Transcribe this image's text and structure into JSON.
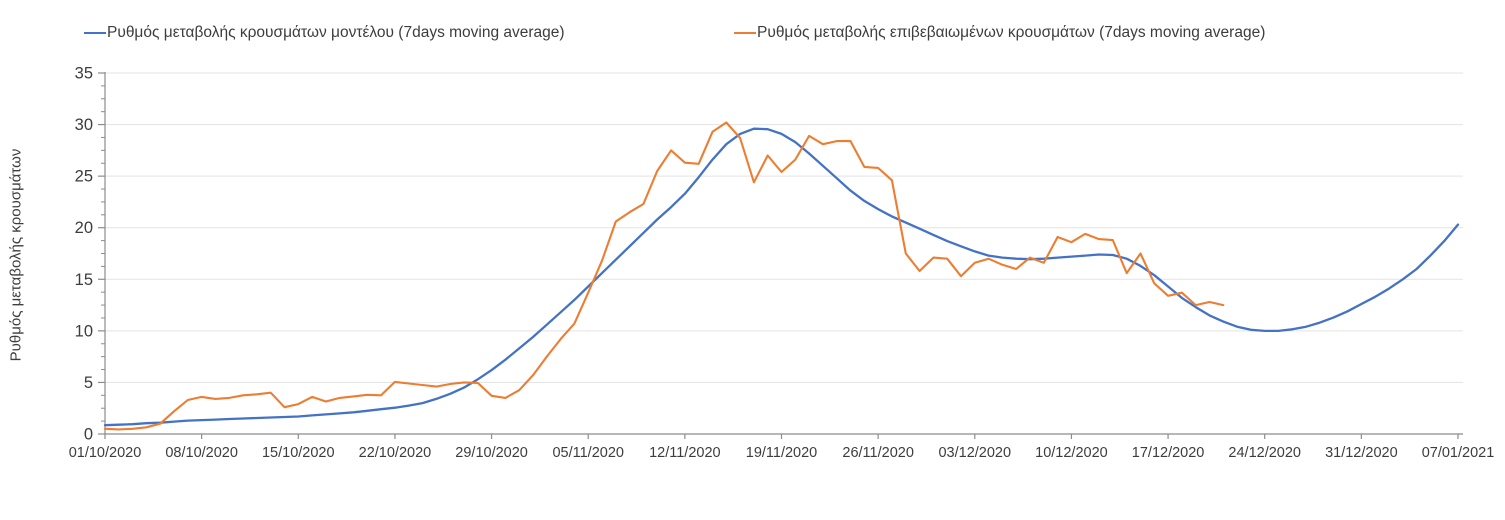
{
  "legend": {
    "items": [
      {
        "label": "Ρυθμός μεταβολής κρουσμάτων μοντέλου (7days moving average)",
        "color": "#4472C4"
      },
      {
        "label": "Ρυθμός μεταβολής επιβεβαιωμένων κρουσμάτων (7days moving average)",
        "color": "#ED7D31"
      }
    ]
  },
  "chart_data": {
    "type": "line",
    "title": "",
    "xlabel": "",
    "ylabel": "Ρυθμός μεταβολής κρουσμάτων",
    "ylim": [
      0,
      35
    ],
    "y_major_ticks": [
      0,
      5,
      10,
      15,
      20,
      25,
      30,
      35
    ],
    "y_minor_step": 1.25,
    "x_tick_labels": [
      "01/10/2020",
      "08/10/2020",
      "15/10/2020",
      "22/10/2020",
      "29/10/2020",
      "05/11/2020",
      "12/11/2020",
      "19/11/2020",
      "26/11/2020",
      "03/12/2020",
      "10/12/2020",
      "17/12/2020",
      "24/12/2020",
      "31/12/2020",
      "07/01/2021"
    ],
    "x_tick_every_days": 7,
    "grid": "horizontal-major-only",
    "legend_position": "top",
    "background_color": "#ffffff",
    "axis_color": "#8c8c8c",
    "grid_color": "#e3e3e3",
    "tick_label_color": "#3d3d3d",
    "series": [
      {
        "name": "Ρυθμός μεταβολής κρουσμάτων μοντέλου (7days moving average)",
        "color": "#4472C4",
        "start_date": "01/10/2020",
        "end_date": "07/01/2021",
        "values": [
          0.85,
          0.9,
          0.95,
          1.05,
          1.1,
          1.2,
          1.3,
          1.35,
          1.4,
          1.45,
          1.5,
          1.55,
          1.6,
          1.65,
          1.7,
          1.8,
          1.9,
          2.0,
          2.1,
          2.25,
          2.4,
          2.55,
          2.75,
          3.0,
          3.4,
          3.9,
          4.5,
          5.3,
          6.2,
          7.2,
          8.3,
          9.4,
          10.6,
          11.8,
          13.0,
          14.3,
          15.6,
          16.9,
          18.2,
          19.5,
          20.8,
          22.0,
          23.3,
          24.9,
          26.6,
          28.1,
          29.1,
          29.6,
          29.55,
          29.1,
          28.3,
          27.2,
          26.0,
          24.8,
          23.6,
          22.6,
          21.8,
          21.1,
          20.5,
          19.9,
          19.3,
          18.7,
          18.2,
          17.7,
          17.3,
          17.1,
          17.0,
          16.95,
          17.0,
          17.1,
          17.2,
          17.3,
          17.4,
          17.35,
          17.0,
          16.3,
          15.4,
          14.3,
          13.2,
          12.3,
          11.5,
          10.9,
          10.4,
          10.1,
          10.0,
          10.0,
          10.15,
          10.4,
          10.8,
          11.3,
          11.9,
          12.6,
          13.3,
          14.1,
          15.0,
          16.0,
          17.3,
          18.7,
          20.3
        ]
      },
      {
        "name": "Ρυθμός μεταβολής επιβεβαιωμένων κρουσμάτων (7days moving average)",
        "color": "#ED7D31",
        "start_date": "01/10/2020",
        "end_date": "21/12/2020",
        "values": [
          0.5,
          0.45,
          0.5,
          0.65,
          1.0,
          2.2,
          3.3,
          3.6,
          3.4,
          3.5,
          3.75,
          3.85,
          4.0,
          2.6,
          2.9,
          3.6,
          3.15,
          3.5,
          3.65,
          3.8,
          3.75,
          5.05,
          4.9,
          4.75,
          4.6,
          4.85,
          5.0,
          4.95,
          3.7,
          3.5,
          4.25,
          5.7,
          7.5,
          9.2,
          10.7,
          13.7,
          16.8,
          20.6,
          21.5,
          22.3,
          25.5,
          27.5,
          26.3,
          26.2,
          29.3,
          30.2,
          28.7,
          24.4,
          27.0,
          25.4,
          26.6,
          28.9,
          28.1,
          28.4,
          28.4,
          25.9,
          25.8,
          24.6,
          17.5,
          15.8,
          17.1,
          17.0,
          15.3,
          16.6,
          17.0,
          16.4,
          16.0,
          17.1,
          16.6,
          19.1,
          18.6,
          19.4,
          18.9,
          18.8,
          15.6,
          17.5,
          14.6,
          13.4,
          13.7,
          12.5,
          12.8,
          12.5
        ]
      }
    ]
  }
}
